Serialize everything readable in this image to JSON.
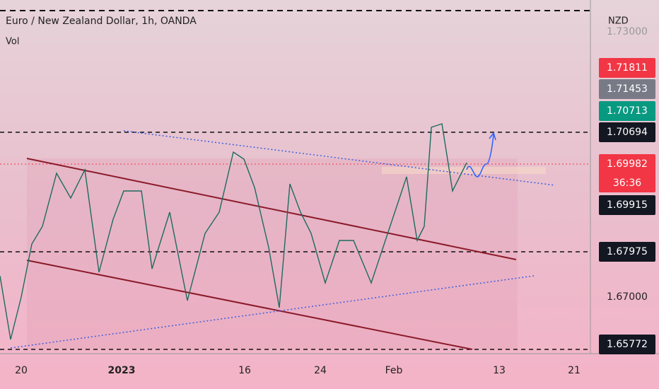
{
  "header": {
    "title": "Euro / New Zealand Dollar, 1h, OANDA",
    "indicator": "Vol",
    "currency": "NZD"
  },
  "price_axis": [
    {
      "label": "1.73000",
      "style": "plain-faded"
    },
    {
      "label": "1.71811",
      "style": "red"
    },
    {
      "label": "1.71453",
      "style": "grey"
    },
    {
      "label": "1.70713",
      "style": "teal"
    },
    {
      "label": "1.70694",
      "style": "black"
    },
    {
      "label": "1.69982",
      "style": "red",
      "countdown": "36:36"
    },
    {
      "label": "1.69915",
      "style": "black"
    },
    {
      "label": "1.67975",
      "style": "black"
    },
    {
      "label": "1.67000",
      "style": "plain"
    },
    {
      "label": "1.65772",
      "style": "black"
    }
  ],
  "time_axis": [
    {
      "label": "20",
      "bold": false
    },
    {
      "label": "2023",
      "bold": true
    },
    {
      "label": "16",
      "bold": false
    },
    {
      "label": "24",
      "bold": false
    },
    {
      "label": "Feb",
      "bold": false
    },
    {
      "label": "13",
      "bold": false
    },
    {
      "label": "21",
      "bold": false
    }
  ]
}
